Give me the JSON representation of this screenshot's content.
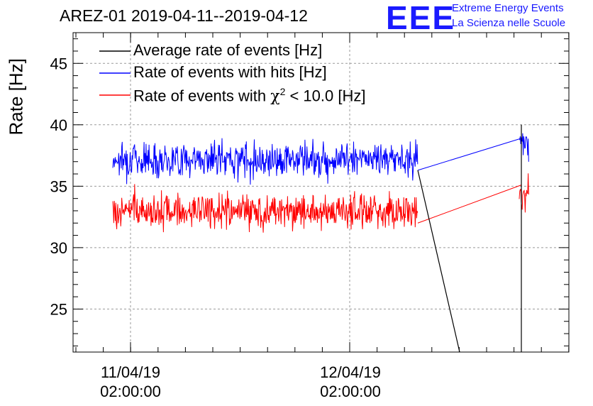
{
  "header": {
    "title": "AREZ-01 2019-04-11--2019-04-12",
    "logo_text": "EEE",
    "logo_line1": "Extreme Energy Events",
    "logo_line2": "La Scienza nelle Scuole",
    "logo_color": "#1a1aff"
  },
  "chart_data": {
    "type": "line",
    "ylabel": "Rate [Hz]",
    "ylim": [
      21.5,
      47.5
    ],
    "yticks": [
      25,
      30,
      35,
      40,
      45
    ],
    "x_tick_labels": [
      {
        "date": "11/04/19",
        "time": "02:00:00"
      },
      {
        "date": "12/04/19",
        "time": "02:00:00"
      }
    ],
    "grid": true,
    "legend_position": "top-left",
    "series": [
      {
        "name": "Average rate of events [Hz]",
        "color": "#000000",
        "description_points": [
          [
            0.0,
            36.3
          ],
          [
            0.37,
            36.3
          ],
          [
            0.625,
            21.5
          ],
          [
            0.625,
            21.5
          ],
          [
            0.93,
            21.5
          ],
          [
            0.93,
            39.5
          ]
        ]
      },
      {
        "name": "Rate of events with hits [Hz]",
        "color": "#0000ff",
        "mean_first_segment": 37.2,
        "noise": 1.0,
        "mean_second_segment": 38.5
      },
      {
        "name": "Rate of events with χ² < 10.0 [Hz]",
        "color": "#ff0000",
        "mean_first_segment": 33.0,
        "noise": 1.0,
        "mean_second_segment": 34.5
      }
    ]
  },
  "legend": {
    "item0": "Average rate of events [Hz]",
    "item1_prefix": "Rate of events with hits [Hz]",
    "item2_prefix": "Rate of events with ",
    "item2_chi": "χ",
    "item2_sup": "2",
    "item2_suffix": " < 10.0 [Hz]"
  }
}
